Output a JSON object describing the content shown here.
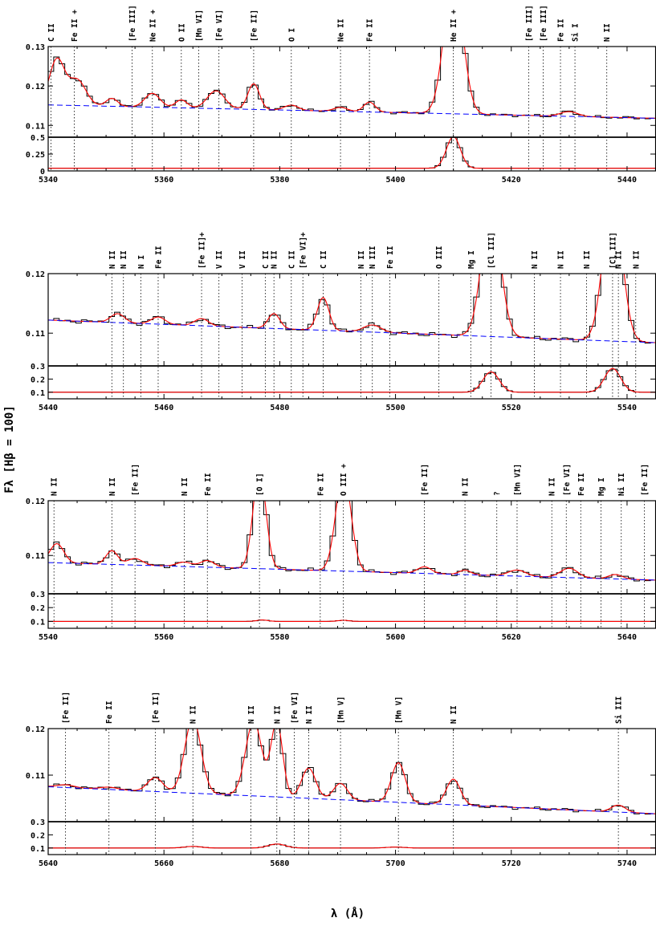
{
  "figure": {
    "ylabel": "Fλ [Hβ = 100]",
    "xlabel": "λ (Å)"
  },
  "colors": {
    "observed": "#000000",
    "model": "#ff0000",
    "continuum": "#0000ff",
    "marker": "#000000"
  },
  "chart_data": [
    {
      "type": "line",
      "panel": 1,
      "xlim": [
        5340,
        5445
      ],
      "ylim_top": [
        0.107,
        0.13
      ],
      "ylim_bottom": [
        0,
        0.5
      ],
      "x_ticks": [
        5340,
        5360,
        5380,
        5400,
        5420,
        5440
      ],
      "y_ticks_top": [
        {
          "v": 0.11,
          "t": "0.11"
        },
        {
          "v": 0.12,
          "t": "0.12"
        },
        {
          "v": 0.13,
          "t": "0.13"
        }
      ],
      "y_ticks_bottom": [
        {
          "v": 0,
          "t": "0"
        },
        {
          "v": 0.25,
          "t": "0.25"
        },
        {
          "v": 0.5,
          "t": "0.5"
        }
      ],
      "continuum": [
        [
          5340,
          0.1152
        ],
        [
          5445,
          0.1118
        ]
      ],
      "baseline_bottom": 0.04,
      "bottom_peaks": [
        [
          5410,
          0.47,
          1.2
        ]
      ],
      "lines": [
        {
          "x": 5340.5,
          "label": "C II"
        },
        {
          "x": 5344.5,
          "label": "Fe II +"
        },
        {
          "x": 5354.5,
          "label": "[Fe III]"
        },
        {
          "x": 5358,
          "label": "Ne II +"
        },
        {
          "x": 5363,
          "label": "O II"
        },
        {
          "x": 5366,
          "label": "[Mn VI]"
        },
        {
          "x": 5369.5,
          "label": "[Fe VI]"
        },
        {
          "x": 5375.5,
          "label": "[Fe II]"
        },
        {
          "x": 5382,
          "label": "O I"
        },
        {
          "x": 5390.5,
          "label": "Ne II"
        },
        {
          "x": 5395.5,
          "label": "Fe II"
        },
        {
          "x": 5410,
          "label": "He II +"
        },
        {
          "x": 5423,
          "label": "[Fe III]"
        },
        {
          "x": 5425.5,
          "label": "[Fe III]"
        },
        {
          "x": 5428.5,
          "label": "Fe II"
        },
        {
          "x": 5431,
          "label": "Si I"
        },
        {
          "x": 5436.5,
          "label": "N II"
        }
      ],
      "features": [
        [
          5341.5,
          0.0115,
          1.3
        ],
        [
          5345,
          0.0065,
          1.5
        ],
        [
          5351,
          0.002,
          1.0
        ],
        [
          5358,
          0.0035,
          1.3
        ],
        [
          5363,
          0.002,
          1.0
        ],
        [
          5369,
          0.0045,
          1.5
        ],
        [
          5375.5,
          0.0065,
          1.0
        ],
        [
          5382,
          0.0013,
          1.2
        ],
        [
          5390.5,
          0.001,
          1.2
        ],
        [
          5395.5,
          0.0025,
          1.0
        ],
        [
          5410,
          0.035,
          1.6
        ],
        [
          5430,
          0.0012,
          1.5
        ]
      ]
    },
    {
      "type": "line",
      "panel": 2,
      "xlim": [
        5440,
        5545
      ],
      "ylim_top": [
        0.1045,
        0.12
      ],
      "ylim_bottom": [
        0.05,
        0.3
      ],
      "x_ticks": [
        5440,
        5460,
        5480,
        5500,
        5520,
        5540
      ],
      "y_ticks_top": [
        {
          "v": 0.11,
          "t": "0.11"
        },
        {
          "v": 0.12,
          "t": "0.12"
        }
      ],
      "y_ticks_bottom": [
        {
          "v": 0.1,
          "t": "0.1"
        },
        {
          "v": 0.2,
          "t": "0.2"
        },
        {
          "v": 0.3,
          "t": "0.3"
        }
      ],
      "continuum": [
        [
          5440,
          0.1122
        ],
        [
          5545,
          0.1084
        ]
      ],
      "baseline_bottom": 0.1,
      "bottom_peaks": [
        [
          5516.5,
          0.155,
          1.4
        ],
        [
          5537.5,
          0.18,
          1.4
        ]
      ],
      "lines": [
        {
          "x": 5451,
          "label": "N II"
        },
        {
          "x": 5453,
          "label": "N II"
        },
        {
          "x": 5456,
          "label": "N I"
        },
        {
          "x": 5459,
          "label": "Fe II"
        },
        {
          "x": 5466.5,
          "label": "[Fe II]+"
        },
        {
          "x": 5469.5,
          "label": "V II"
        },
        {
          "x": 5473.5,
          "label": "V II"
        },
        {
          "x": 5477.5,
          "label": "C II"
        },
        {
          "x": 5479,
          "label": "N II"
        },
        {
          "x": 5482,
          "label": "C II"
        },
        {
          "x": 5484,
          "label": "[Fe VI]+"
        },
        {
          "x": 5487.5,
          "label": "C II"
        },
        {
          "x": 5494,
          "label": "N II"
        },
        {
          "x": 5496,
          "label": "N III"
        },
        {
          "x": 5499,
          "label": "Fe II"
        },
        {
          "x": 5507.5,
          "label": "O III"
        },
        {
          "x": 5513,
          "label": "Mg I"
        },
        {
          "x": 5516.5,
          "label": "[Cl III]"
        },
        {
          "x": 5524,
          "label": "N II"
        },
        {
          "x": 5528.5,
          "label": "N II"
        },
        {
          "x": 5533,
          "label": "N II"
        },
        {
          "x": 5537.5,
          "label": "[Cl III]"
        },
        {
          "x": 5538.5,
          "label": "N II"
        },
        {
          "x": 5541.5,
          "label": "N II"
        }
      ],
      "features": [
        [
          5452,
          0.0015,
          1.2
        ],
        [
          5459,
          0.0012,
          1.2
        ],
        [
          5466.5,
          0.0012,
          1.2
        ],
        [
          5479,
          0.0025,
          1.0
        ],
        [
          5487.5,
          0.0055,
          1.0
        ],
        [
          5496,
          0.0012,
          1.5
        ],
        [
          5516.5,
          0.022,
          1.6
        ],
        [
          5537.5,
          0.025,
          1.6
        ]
      ]
    },
    {
      "type": "line",
      "panel": 3,
      "xlim": [
        5540,
        5645
      ],
      "ylim_top": [
        0.103,
        0.12
      ],
      "ylim_bottom": [
        0.05,
        0.3
      ],
      "x_ticks": [
        5540,
        5560,
        5580,
        5600,
        5620,
        5640
      ],
      "y_ticks_top": [
        {
          "v": 0.11,
          "t": "0.11"
        },
        {
          "v": 0.12,
          "t": "0.12"
        }
      ],
      "y_ticks_bottom": [
        {
          "v": 0.1,
          "t": "0.1"
        },
        {
          "v": 0.2,
          "t": "0.2"
        },
        {
          "v": 0.3,
          "t": "0.3"
        }
      ],
      "continuum": [
        [
          5540,
          0.1087
        ],
        [
          5645,
          0.1055
        ]
      ],
      "baseline_bottom": 0.1,
      "bottom_peaks": [
        [
          5577,
          0.01,
          1.0
        ],
        [
          5591,
          0.008,
          1.0
        ]
      ],
      "lines": [
        {
          "x": 5541,
          "label": "N II"
        },
        {
          "x": 5551,
          "label": "N II"
        },
        {
          "x": 5555,
          "label": "[Fe II]"
        },
        {
          "x": 5563.5,
          "label": "N II"
        },
        {
          "x": 5567.5,
          "label": "Fe II"
        },
        {
          "x": 5576.5,
          "label": "[O I]"
        },
        {
          "x": 5587,
          "label": "Fe II"
        },
        {
          "x": 5591,
          "label": "O III +"
        },
        {
          "x": 5605,
          "label": "[Fe II]"
        },
        {
          "x": 5612,
          "label": "N II"
        },
        {
          "x": 5617.5,
          "label": "?"
        },
        {
          "x": 5621,
          "label": "[Mn VI]"
        },
        {
          "x": 5627,
          "label": "N II"
        },
        {
          "x": 5629.5,
          "label": "[Fe VI]"
        },
        {
          "x": 5632,
          "label": "Fe II"
        },
        {
          "x": 5635.5,
          "label": "Mg I"
        },
        {
          "x": 5639,
          "label": "Ni II"
        },
        {
          "x": 5643,
          "label": "[Fe II]"
        }
      ],
      "features": [
        [
          5541.5,
          0.0035,
          1.2
        ],
        [
          5551,
          0.0025,
          1.0
        ],
        [
          5555,
          0.0012,
          1.3
        ],
        [
          5563.5,
          0.0008,
          1.3
        ],
        [
          5567.5,
          0.0012,
          1.2
        ],
        [
          5576.5,
          0.018,
          1.1
        ],
        [
          5591,
          0.018,
          1.3
        ],
        [
          5605,
          0.0012,
          1.2
        ],
        [
          5612,
          0.0008,
          1.0
        ],
        [
          5621,
          0.0011,
          1.5
        ],
        [
          5630,
          0.0017,
          1.5
        ],
        [
          5638,
          0.0008,
          1.2
        ]
      ]
    },
    {
      "type": "line",
      "panel": 4,
      "xlim": [
        5640,
        5745
      ],
      "ylim_top": [
        0.1,
        0.12
      ],
      "ylim_bottom": [
        0.05,
        0.3
      ],
      "x_ticks": [
        5640,
        5660,
        5680,
        5700,
        5720,
        5740
      ],
      "y_ticks_top": [
        {
          "v": 0.11,
          "t": "0.11"
        },
        {
          "v": 0.12,
          "t": "0.12"
        }
      ],
      "y_ticks_bottom": [
        {
          "v": 0.1,
          "t": "0.1"
        },
        {
          "v": 0.2,
          "t": "0.2"
        },
        {
          "v": 0.3,
          "t": "0.3"
        }
      ],
      "continuum": [
        [
          5640,
          0.1075
        ],
        [
          5745,
          0.1017
        ]
      ],
      "baseline_bottom": 0.1,
      "bottom_peaks": [
        [
          5665,
          0.012,
          1.5
        ],
        [
          5679.5,
          0.03,
          1.5
        ],
        [
          5700,
          0.007,
          1.5
        ]
      ],
      "lines": [
        {
          "x": 5643,
          "label": "[Fe II]"
        },
        {
          "x": 5650.5,
          "label": "Fe II"
        },
        {
          "x": 5658.5,
          "label": "[Fe II]"
        },
        {
          "x": 5665,
          "label": "N II"
        },
        {
          "x": 5675,
          "label": "N II"
        },
        {
          "x": 5679.5,
          "label": "N II"
        },
        {
          "x": 5682.5,
          "label": "[Fe VI]"
        },
        {
          "x": 5685,
          "label": "N II"
        },
        {
          "x": 5690.5,
          "label": "[Mn V]"
        },
        {
          "x": 5700.5,
          "label": "[Mn V]"
        },
        {
          "x": 5710,
          "label": "N II"
        },
        {
          "x": 5738.5,
          "label": "Si III"
        }
      ],
      "features": [
        [
          5643,
          0.0006,
          1.5
        ],
        [
          5650.5,
          0.0005,
          1.5
        ],
        [
          5658.5,
          0.003,
          1.3
        ],
        [
          5665,
          0.016,
          1.4
        ],
        [
          5675.5,
          0.016,
          1.4
        ],
        [
          5679.5,
          0.016,
          1.0
        ],
        [
          5685,
          0.0065,
          1.2
        ],
        [
          5690.5,
          0.0035,
          1.2
        ],
        [
          5700.5,
          0.0085,
          1.2
        ],
        [
          5710,
          0.0055,
          1.2
        ],
        [
          5738.5,
          0.0015,
          1.2
        ]
      ]
    }
  ]
}
